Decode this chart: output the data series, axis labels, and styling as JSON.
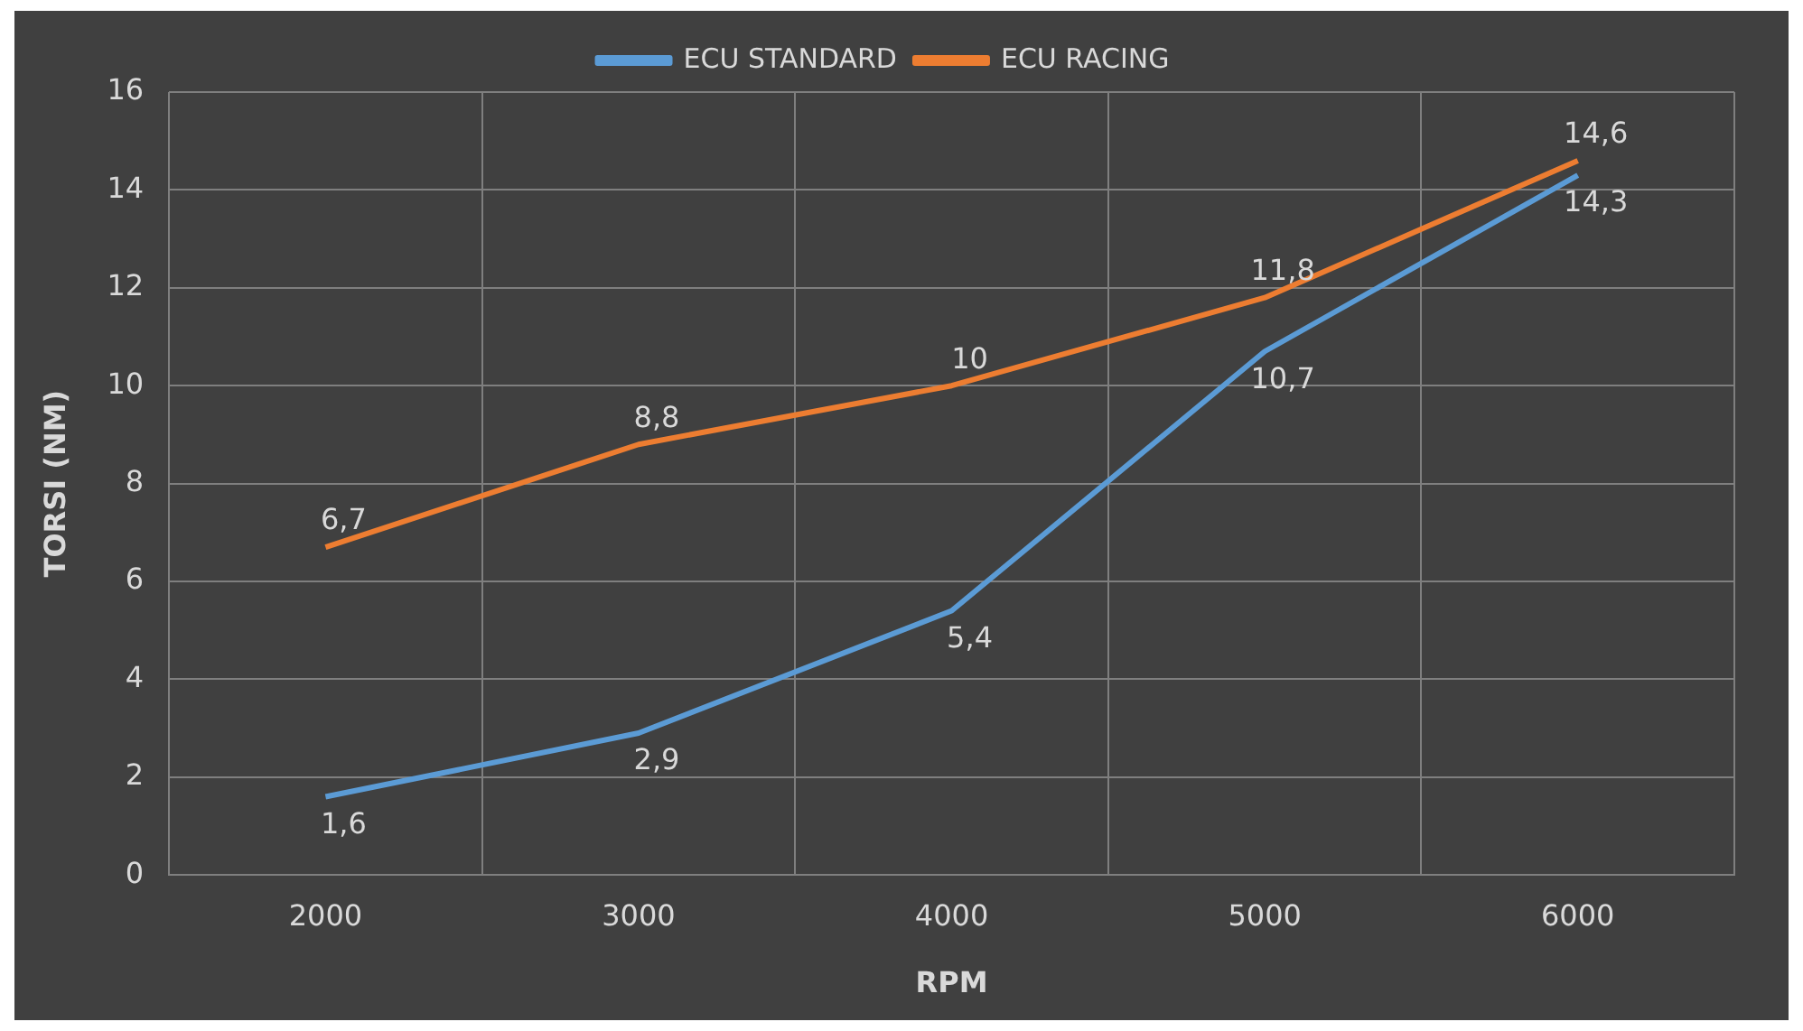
{
  "chart_data": {
    "type": "line",
    "xlabel": "RPM",
    "ylabel": "TORSI (NM)",
    "categories": [
      "2000",
      "3000",
      "4000",
      "5000",
      "6000"
    ],
    "series": [
      {
        "name": "ECU STANDARD",
        "color": "#5b9bd5",
        "values": [
          1.6,
          2.9,
          5.4,
          10.7,
          14.3
        ],
        "value_labels": [
          "1,6",
          "2,9",
          "5,4",
          "10,7",
          "14,3"
        ]
      },
      {
        "name": "ECU RACING",
        "color": "#ed7d31",
        "values": [
          6.7,
          8.8,
          10,
          11.8,
          14.6
        ],
        "value_labels": [
          "6,7",
          "8,8",
          "10",
          "11,8",
          "14,6"
        ]
      }
    ],
    "ylim": [
      0,
      16
    ],
    "yticks": [
      0,
      2,
      4,
      6,
      8,
      10,
      12,
      14,
      16
    ],
    "grid": true,
    "legend": "top",
    "marker": "none",
    "line_style": "solid"
  }
}
